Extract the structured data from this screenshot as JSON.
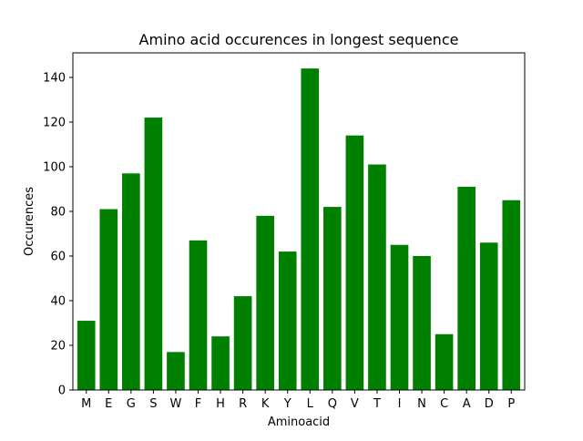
{
  "chart_data": {
    "type": "bar",
    "title": "Amino acid occurences in longest sequence",
    "xlabel": "Aminoacid",
    "ylabel": "Occurences",
    "categories": [
      "M",
      "E",
      "G",
      "S",
      "W",
      "F",
      "H",
      "R",
      "K",
      "Y",
      "L",
      "Q",
      "V",
      "T",
      "I",
      "N",
      "C",
      "A",
      "D",
      "P"
    ],
    "values": [
      31,
      81,
      97,
      122,
      17,
      67,
      24,
      42,
      78,
      62,
      144,
      82,
      114,
      101,
      65,
      60,
      25,
      91,
      66,
      85
    ],
    "ylim": [
      0,
      151
    ],
    "yticks": [
      0,
      20,
      40,
      60,
      80,
      100,
      120,
      140
    ],
    "bar_color": "#008000",
    "grid": false
  }
}
